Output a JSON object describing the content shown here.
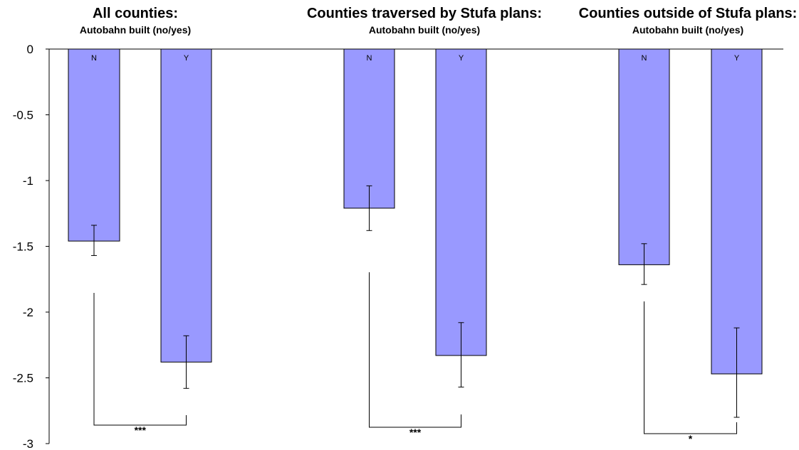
{
  "chart_data": {
    "type": "bar",
    "ylim": [
      -3,
      0
    ],
    "yticks": [
      "0",
      "-0.5",
      "-1",
      "-1.5",
      "-2",
      "-2.5",
      "-3"
    ],
    "ytick_values": [
      0,
      -0.5,
      -1,
      -1.5,
      -2,
      -2.5,
      -3
    ],
    "grid": false,
    "panels": [
      {
        "title": "All counties:",
        "subtitle": "Autobahn built (no/yes)",
        "categories": [
          "N",
          "Y"
        ],
        "values": [
          -1.46,
          -2.38
        ],
        "errors": [
          [
            -1.57,
            -1.34
          ],
          [
            -2.58,
            -2.18
          ]
        ],
        "significance": "***"
      },
      {
        "title": "Counties traversed by Stufa plans:",
        "subtitle": "Autobahn built (no/yes)",
        "categories": [
          "N",
          "Y"
        ],
        "values": [
          -1.21,
          -2.33
        ],
        "errors": [
          [
            -1.38,
            -1.04
          ],
          [
            -2.57,
            -2.08
          ]
        ],
        "significance": "***"
      },
      {
        "title": "Counties outside of Stufa plans:",
        "subtitle": "Autobahn built (no/yes)",
        "categories": [
          "N",
          "Y"
        ],
        "values": [
          -1.64,
          -2.47
        ],
        "errors": [
          [
            -1.79,
            -1.48
          ],
          [
            -2.8,
            -2.12
          ]
        ],
        "significance": "*"
      }
    ]
  },
  "colors": {
    "bar_fill": "#9999ff",
    "bar_stroke": "#000000"
  }
}
